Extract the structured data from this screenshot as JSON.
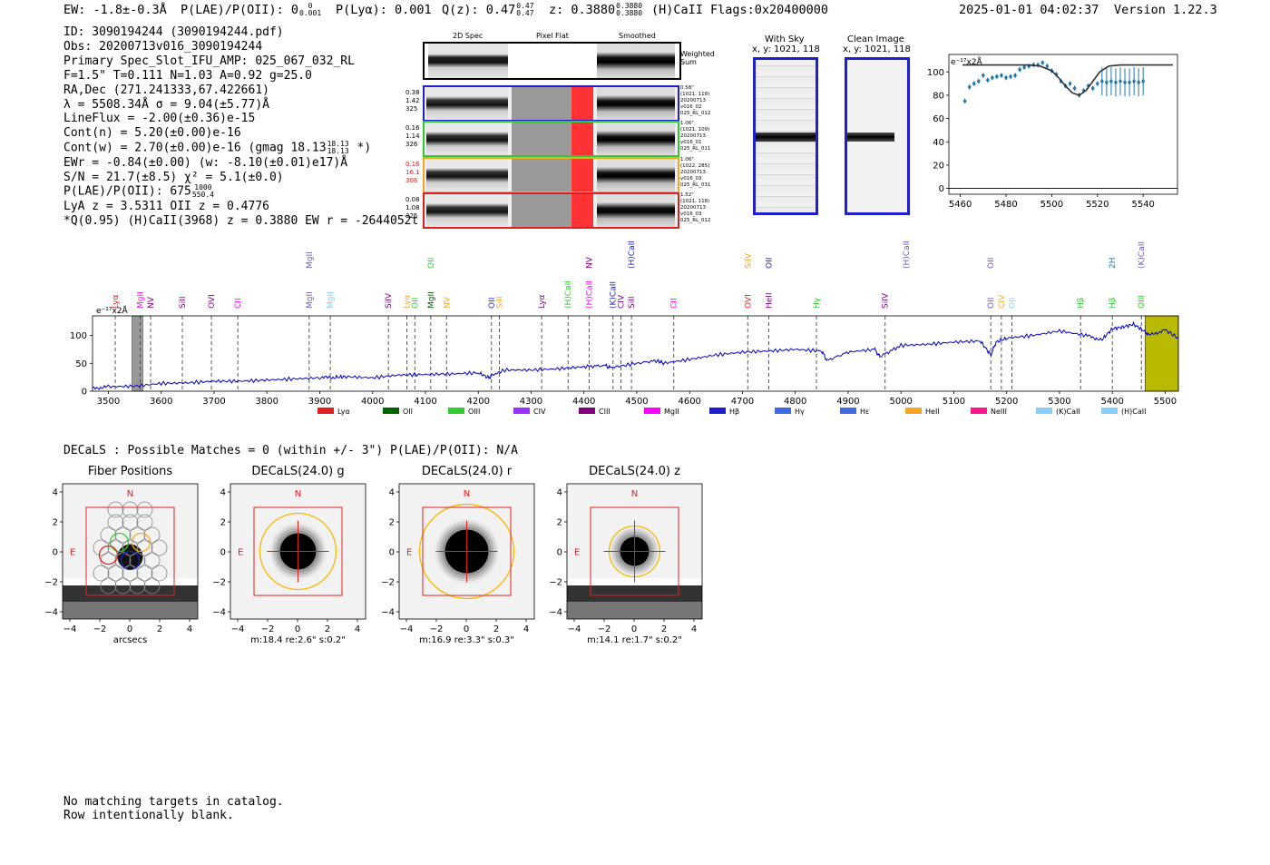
{
  "header": {
    "ew": "EW: -1.8±-0.3Å",
    "plae_label": "P(LAE)/P(OII): 0",
    "plae_sup": "0",
    "plae_sub": "0.001",
    "plya": "P(Lyα): 0.001",
    "qz_label": "Q(z): 0.47",
    "qz_sup": "0.47",
    "qz_sub": "0.47",
    "z_label": "z: 0.3880",
    "z_sup": "0.3880",
    "z_sub": "0.3880",
    "line_flags": "(H)CaII  Flags:0x20400000",
    "timestamp": "2025-01-01 04:02:37",
    "version": "Version 1.22.3"
  },
  "info": {
    "id": "ID: 3090194244 (3090194244.pdf)",
    "obs": "Obs: 20200713v016_3090194244",
    "primary": "Primary Spec_Slot_IFU_AMP: 025_067_032_RL",
    "params": "F=1.5\"  T=0.111  N=1.03  A=0.92  g=25.0",
    "radec": "RA,Dec (271.241333,67.422661)",
    "lambda": "λ = 5508.34Å  σ = 9.04(±5.77)Å",
    "lineflux": "LineFlux = -2.00(±0.36)e-15",
    "contn": "Cont(n) = 5.20(±0.00)e-16",
    "contw": "Cont(w) = 2.70(±0.00)e-16 (gmag 18.13",
    "contw_sup": "18.13",
    "contw_sub": "18.13",
    "contw_end": "*)",
    "ewr": "EWr = -0.84(±0.00) (w: -8.10(±0.01)e17)Å",
    "sn": "S/N = 21.7(±8.5)  χ² = 5.1(±0.0)",
    "plae": "P(LAE)/P(OII): 675",
    "plae_sup": "1000",
    "plae_sub": "550.4",
    "lya_z": "LyA z = 3.5311  OII z = 0.4776",
    "q": "*Q(0.95) (H)CaII(3968) z = 0.3880  EW r = -2644052t"
  },
  "cutouts": {
    "headers": [
      "2D Spec",
      "Pixel Flat",
      "Smoothed"
    ],
    "weighted_sum": [
      "Weighted",
      "Sum"
    ],
    "rows": [
      {
        "color": "#1f1fd0",
        "left": [
          "0.38",
          "1.42",
          "325"
        ],
        "left_color": "#000000",
        "right": [
          "0.58\"",
          "(1021, 118)",
          "20200713",
          "v016_02",
          "025_RL_012"
        ]
      },
      {
        "color": "#2ecc2e",
        "left": [
          "0.16",
          "1.14",
          "326"
        ],
        "left_color": "#000000",
        "right": [
          "1.06\"",
          "(1021, 109)",
          "20200713",
          "v016_01",
          "025_RL_011"
        ]
      },
      {
        "color": "#f5a623",
        "left": [
          "0.16",
          "16.1",
          "306"
        ],
        "left_color": "#e02020",
        "right": [
          "1.06\"",
          "(1022, 285)",
          "20200713",
          "v016_03",
          "025_RL_031"
        ]
      },
      {
        "color": "#e02020",
        "left": [
          "0.08",
          "1.08",
          "325"
        ],
        "left_color": "#000000",
        "right": [
          "1.52\"",
          "(1021, 118)",
          "20200713",
          "v016_03",
          "025_RL_012"
        ]
      }
    ]
  },
  "sky_panels": {
    "with_sky_title": "With Sky",
    "with_sky_coord": "x, y: 1021, 118",
    "clean_title": "Clean Image",
    "clean_coord": "x, y: 1021, 118"
  },
  "catalog": {
    "decals_line": "DECaLS : Possible Matches = 0 (within +/- 3\")  P(LAE)/P(OII): N/A",
    "no_match": "No matching targets in catalog.",
    "blank_row": "Row intentionally blank."
  },
  "images": [
    {
      "title": "Fiber Positions",
      "xlabel": "arcsecs",
      "stats": ""
    },
    {
      "title": "DECaLS(24.0) g",
      "xlabel": "",
      "stats": "m:18.4  re:2.6\"  s:0.2\""
    },
    {
      "title": "DECaLS(24.0) r",
      "xlabel": "",
      "stats": "m:16.9  re:3.3\"  s:0.3\""
    },
    {
      "title": "DECaLS(24.0) z",
      "xlabel": "",
      "stats": "m:14.1  re:1.7\"  s:0.2\""
    }
  ],
  "image_axis": {
    "ticks": [
      "−4",
      "−2",
      "0",
      "2",
      "4"
    ],
    "north": "N",
    "east": "E"
  },
  "colors": {
    "blue": "#1f1fd0",
    "green": "#2ecc2e",
    "orange": "#f5a623",
    "red": "#e02020",
    "spec": "#0000cc",
    "zoom_pts": "#1f77b4",
    "olive": "#b9b900"
  },
  "chart_data": [
    {
      "id": "zoom",
      "type": "scatter",
      "title": "",
      "scale_label": "e⁻¹⁷x2Å",
      "xlim": [
        5455,
        5555
      ],
      "ylim": [
        -5,
        115
      ],
      "xticks": [
        5460,
        5480,
        5500,
        5520,
        5540
      ],
      "yticks": [
        0,
        20,
        40,
        60,
        80,
        100
      ],
      "points": {
        "x": [
          5462,
          5464,
          5466,
          5468,
          5470,
          5472,
          5474,
          5476,
          5478,
          5480,
          5482,
          5484,
          5486,
          5488,
          5490,
          5492,
          5494,
          5496,
          5498,
          5500,
          5502,
          5504,
          5506,
          5508,
          5510,
          5512,
          5514,
          5516,
          5518,
          5520,
          5522,
          5524,
          5526,
          5528,
          5530,
          5532,
          5534,
          5536,
          5538,
          5540
        ],
        "y": [
          75,
          87,
          90,
          92,
          97,
          93,
          95,
          96,
          97,
          95,
          96,
          97,
          102,
          104,
          105,
          106,
          106,
          108,
          105,
          101,
          98,
          92,
          88,
          90,
          86,
          80,
          84,
          88,
          86,
          90,
          92,
          91,
          92,
          91,
          92,
          91,
          91,
          92,
          91,
          92
        ],
        "err": [
          1.5,
          1.5,
          1.5,
          1.5,
          1.5,
          1.5,
          1.5,
          1.5,
          1.5,
          1.5,
          1.5,
          1.5,
          1.5,
          1.5,
          1.5,
          1.5,
          1.5,
          1.5,
          1.5,
          1.5,
          1.5,
          1.5,
          1.5,
          1.5,
          1.5,
          1.5,
          1.5,
          1.5,
          1.5,
          1.5,
          12,
          12,
          12,
          12,
          12,
          12,
          12,
          12,
          12,
          12
        ]
      },
      "model": {
        "x": [
          5461,
          5480,
          5490,
          5495,
          5500,
          5503,
          5506,
          5509,
          5512,
          5515,
          5518,
          5521,
          5525,
          5530,
          5540,
          5553
        ],
        "y": [
          106,
          106,
          106,
          105,
          101,
          95,
          88,
          82,
          80,
          84,
          92,
          100,
          105,
          106,
          106,
          106
        ]
      }
    },
    {
      "id": "spectrum",
      "type": "line",
      "scale_label": "e⁻¹⁷x2Å",
      "xlim": [
        3470,
        5525
      ],
      "ylim": [
        0,
        135
      ],
      "xticks": [
        3500,
        3600,
        3700,
        3800,
        3900,
        4000,
        4100,
        4200,
        4300,
        4400,
        4500,
        4600,
        4700,
        4800,
        4900,
        5000,
        5100,
        5200,
        5300,
        5400,
        5500
      ],
      "yticks": [
        0,
        50,
        100
      ],
      "series": [
        {
          "name": "spectrum",
          "x": [
            3470,
            3500,
            3550,
            3600,
            3650,
            3700,
            3750,
            3800,
            3850,
            3900,
            3930,
            3950,
            4000,
            4050,
            4100,
            4150,
            4200,
            4220,
            4225,
            4250,
            4300,
            4350,
            4400,
            4440,
            4450,
            4500,
            4540,
            4550,
            4600,
            4650,
            4700,
            4750,
            4800,
            4850,
            4860,
            4900,
            4950,
            4960,
            5000,
            5050,
            5100,
            5150,
            5170,
            5180,
            5200,
            5250,
            5300,
            5350,
            5380,
            5400,
            5420,
            5440,
            5460,
            5470,
            5500,
            5525
          ],
          "y": [
            5,
            8,
            9,
            14,
            15,
            18,
            18,
            20,
            22,
            24,
            25,
            26,
            24,
            29,
            30,
            31,
            33,
            24,
            28,
            38,
            38,
            40,
            44,
            46,
            42,
            50,
            55,
            50,
            57,
            65,
            70,
            72,
            75,
            72,
            55,
            70,
            75,
            62,
            82,
            84,
            88,
            90,
            65,
            88,
            95,
            100,
            108,
            100,
            92,
            112,
            115,
            120,
            108,
            100,
            110,
            95
          ]
        }
      ],
      "shaded_regions": [
        {
          "x0": 3545,
          "x1": 3565,
          "color": "#999999"
        },
        {
          "x0": 5462,
          "x1": 5525,
          "color": "#b9b900"
        }
      ],
      "line_marks": [
        {
          "name": "Lyα",
          "x": 3513,
          "color": "#e02020"
        },
        {
          "name": "MgII",
          "x": 3560,
          "color": "#ff00ff"
        },
        {
          "name": "NV",
          "x": 3580,
          "color": "#800080"
        },
        {
          "name": "SiII",
          "x": 3640,
          "color": "#800080"
        },
        {
          "name": "OVI",
          "x": 3695,
          "color": "#800080"
        },
        {
          "name": "CII",
          "x": 3745,
          "color": "#ff00ff"
        },
        {
          "name": "MgII",
          "x": 3880,
          "color": "#6a5acd"
        },
        {
          "name": "MgII",
          "x": 3920,
          "color": "#87cefa"
        },
        {
          "name": "SiIV",
          "x": 4030,
          "color": "#800080"
        },
        {
          "name": "Lyα",
          "x": 4065,
          "color": "#f5a623"
        },
        {
          "name": "OII",
          "x": 4080,
          "color": "#2ecc2e"
        },
        {
          "name": "MgII",
          "x": 4110,
          "color": "#006400"
        },
        {
          "name": "NV",
          "x": 4140,
          "color": "#f5a623"
        },
        {
          "name": "OII",
          "x": 4225,
          "color": "#1f1fd0"
        },
        {
          "name": "SiII",
          "x": 4240,
          "color": "#f5a623"
        },
        {
          "name": "Lyα",
          "x": 4320,
          "color": "#800080"
        },
        {
          "name": "(H)CaII",
          "x": 4370,
          "color": "#2ecc2e"
        },
        {
          "name": "(H)CaII",
          "x": 4410,
          "color": "#ff00ff"
        },
        {
          "name": "(K)CaII",
          "x": 4455,
          "color": "#1f1fd0"
        },
        {
          "name": "CIV",
          "x": 4470,
          "color": "#800080"
        },
        {
          "name": "SiII",
          "x": 4490,
          "color": "#800080"
        },
        {
          "name": "CII",
          "x": 4570,
          "color": "#ff00ff"
        },
        {
          "name": "OVI",
          "x": 4710,
          "color": "#e02020"
        },
        {
          "name": "HeII",
          "x": 4750,
          "color": "#800080"
        },
        {
          "name": "Hγ",
          "x": 4840,
          "color": "#2ecc2e"
        },
        {
          "name": "SiIV",
          "x": 4970,
          "color": "#800080"
        },
        {
          "name": "OII",
          "x": 5170,
          "color": "#6a5acd"
        },
        {
          "name": "CIV",
          "x": 5190,
          "color": "#f5a623"
        },
        {
          "name": "OII",
          "x": 5210,
          "color": "#87cefa"
        },
        {
          "name": "Hβ",
          "x": 5340,
          "color": "#2ecc2e"
        },
        {
          "name": "Hβ",
          "x": 5400,
          "color": "#2ecc2e"
        },
        {
          "name": "OIII",
          "x": 5455,
          "color": "#2ecc2e"
        }
      ],
      "upper_marks": [
        {
          "name": "MgII",
          "x": 3880,
          "color": "#6a5acd"
        },
        {
          "name": "OII",
          "x": 4110,
          "color": "#2ecc2e"
        },
        {
          "name": "NV",
          "x": 4410,
          "color": "#800080"
        },
        {
          "name": "(H)CaII",
          "x": 4490,
          "color": "#1f1fd0"
        },
        {
          "name": "SiIV",
          "x": 4710,
          "color": "#f5a623"
        },
        {
          "name": "OII",
          "x": 4750,
          "color": "#1f1fd0"
        },
        {
          "name": "(H)CaII",
          "x": 5010,
          "color": "#6a5acd"
        },
        {
          "name": "OII",
          "x": 5170,
          "color": "#6a5acd"
        },
        {
          "name": "2H",
          "x": 5400,
          "color": "#1f77b4"
        },
        {
          "name": "(K)CaII",
          "x": 5455,
          "color": "#6a5acd"
        }
      ],
      "legend": [
        {
          "label": "Lyα",
          "color": "#e02020"
        },
        {
          "label": "OII",
          "color": "#006400"
        },
        {
          "label": "OIII",
          "color": "#2ecc2e"
        },
        {
          "label": "CIV",
          "color": "#9b30ff"
        },
        {
          "label": "CIII",
          "color": "#800080"
        },
        {
          "label": "MgII",
          "color": "#ff00ff"
        },
        {
          "label": "Hβ",
          "color": "#1f1fd0"
        },
        {
          "label": "Hγ",
          "color": "#4169e1"
        },
        {
          "label": "Hε",
          "color": "#4169e1"
        },
        {
          "label": "HeII",
          "color": "#f5a623"
        },
        {
          "label": "NeIII",
          "color": "#ff1493"
        },
        {
          "label": "(K)CaII",
          "color": "#87cefa"
        },
        {
          "label": "(H)CaII",
          "color": "#87cefa"
        }
      ]
    }
  ]
}
